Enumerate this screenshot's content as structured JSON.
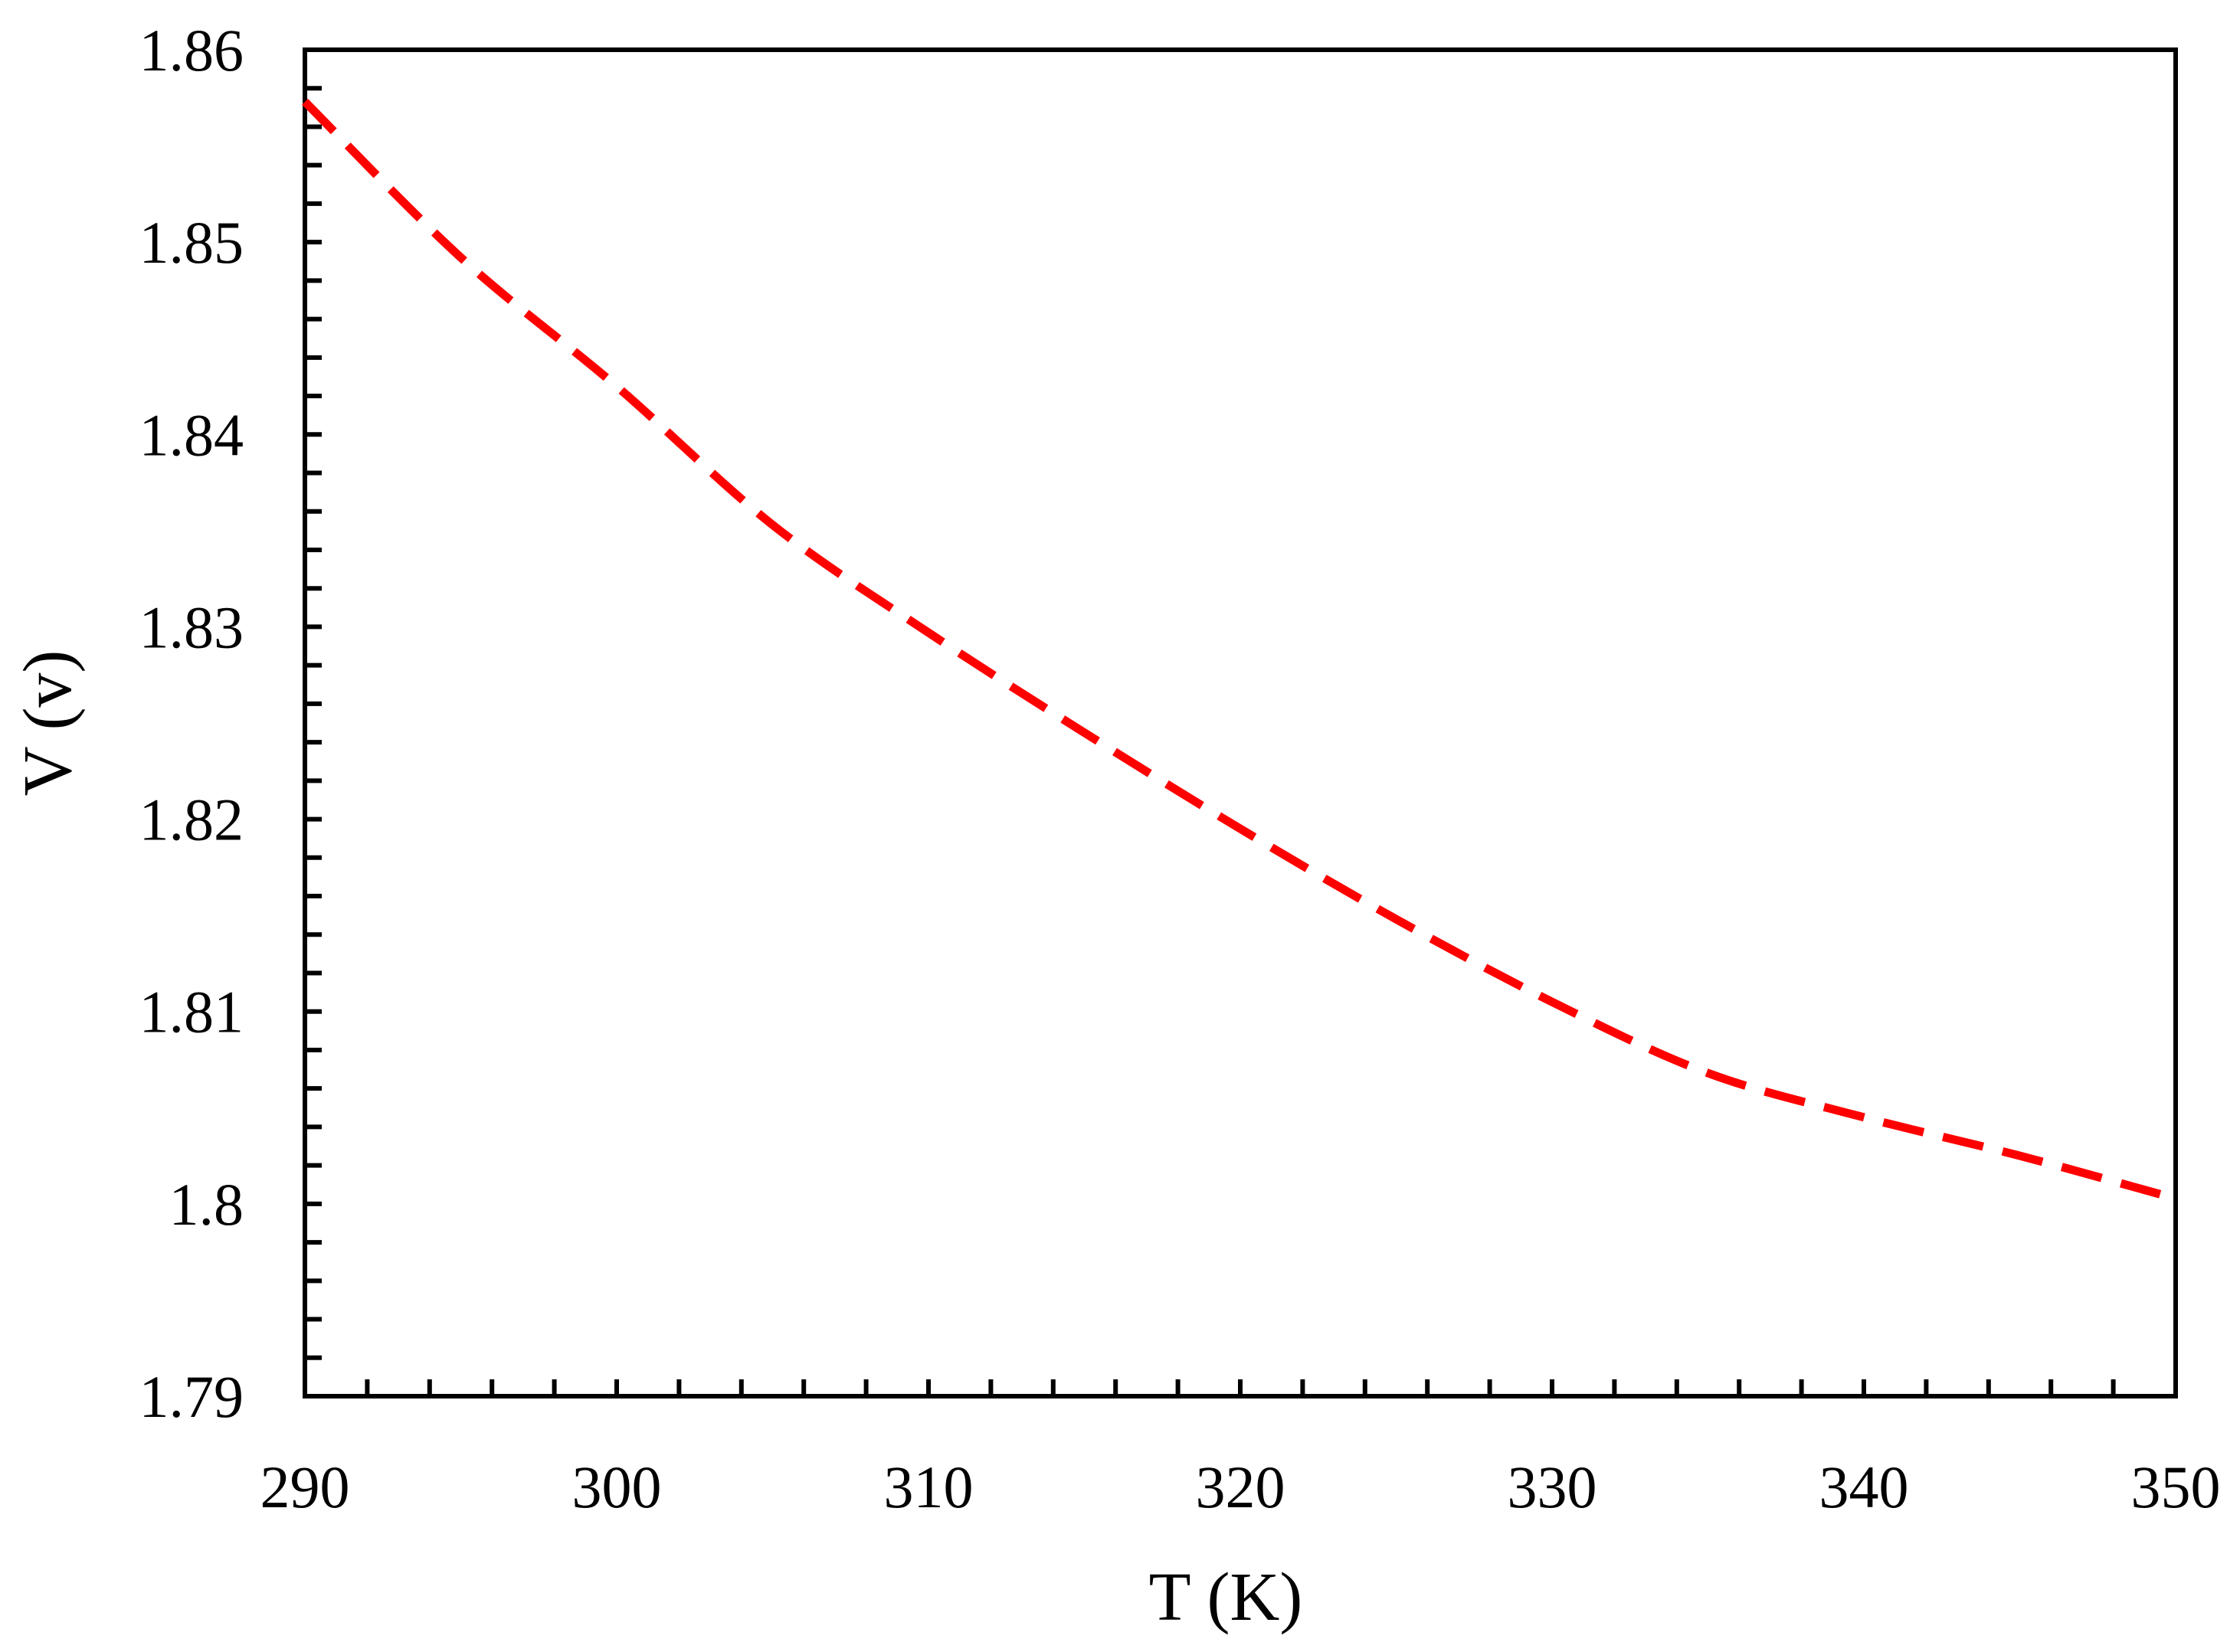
{
  "chart_data": {
    "type": "line",
    "xlabel": "T (K)",
    "ylabel": "V (v)",
    "xlim": [
      290,
      350
    ],
    "ylim": [
      1.79,
      1.86
    ],
    "x_ticks": [
      "290",
      "300",
      "310",
      "320",
      "330",
      "340",
      "350"
    ],
    "y_ticks": [
      "1.79",
      "1.8",
      "1.81",
      "1.82",
      "1.83",
      "1.84",
      "1.85",
      "1.86"
    ],
    "grid": false,
    "legend": "none",
    "series": [
      {
        "line_style": "dashed",
        "color": "#ff0000",
        "x": [
          290,
          295,
          300,
          305,
          310,
          315,
          320,
          325,
          330,
          335,
          340,
          345,
          349.5
        ],
        "y": [
          1.8573,
          1.8492,
          1.8425,
          1.8353,
          1.8297,
          1.8245,
          1.8195,
          1.8148,
          1.8105,
          1.8068,
          1.8045,
          1.8025,
          1.8005
        ]
      }
    ]
  }
}
